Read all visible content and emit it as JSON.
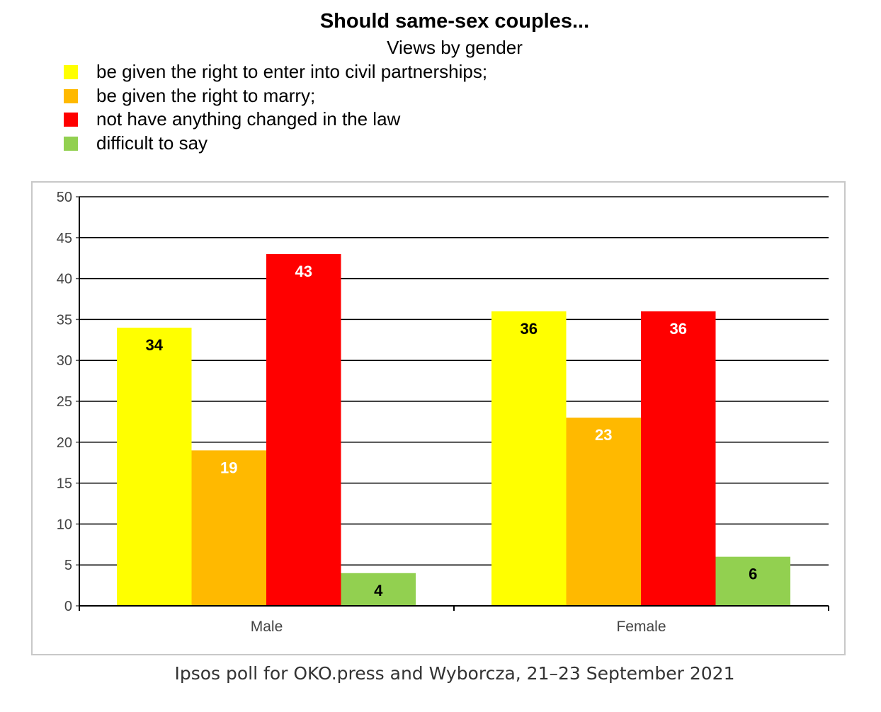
{
  "chart_data": {
    "type": "bar",
    "title": "Should same-sex couples...",
    "subtitle": "Views by gender",
    "categories": [
      "Male",
      "Female"
    ],
    "series": [
      {
        "name": "be given the right to enter into civil partnerships;",
        "color": "#ffff00",
        "label_color": "#000000",
        "values": [
          34,
          36
        ]
      },
      {
        "name": "be given the right to marry;",
        "color": "#ffb900",
        "label_color": "#ffffff",
        "values": [
          19,
          23
        ]
      },
      {
        "name": "not have anything changed in the law",
        "color": "#ff0000",
        "label_color": "#ffffff",
        "values": [
          43,
          36
        ]
      },
      {
        "name": "difficult to say",
        "color": "#92d050",
        "label_color": "#000000",
        "values": [
          4,
          6
        ]
      }
    ],
    "ylim": [
      0,
      50
    ],
    "yticks": [
      0,
      5,
      10,
      15,
      20,
      25,
      30,
      35,
      40,
      45,
      50
    ],
    "grid": true,
    "legend_position": "top",
    "source": "Ipsos poll for OKO.press and Wyborcza, 21–23 September 2021"
  }
}
